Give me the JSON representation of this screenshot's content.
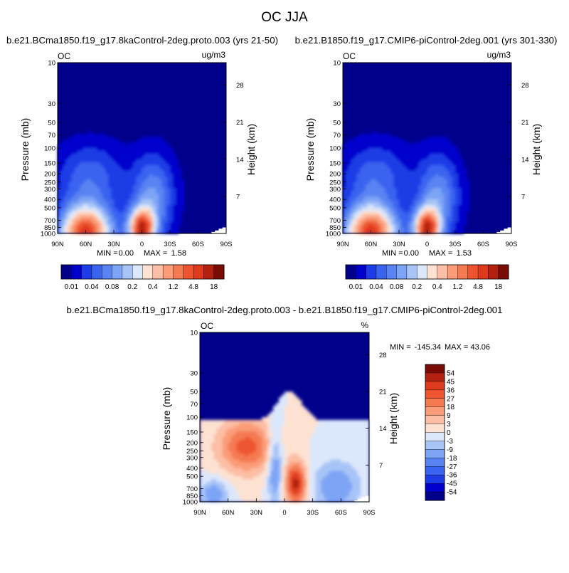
{
  "page_title": "OC JJA",
  "colors": {
    "ramp": [
      "#00008b",
      "#0000cd",
      "#1e3ce6",
      "#3a64f0",
      "#5a84f2",
      "#7ea4f5",
      "#a8c4f7",
      "#dbe7fb",
      "#fde2d2",
      "#fcbea4",
      "#fa9c78",
      "#f47a52",
      "#ee5430",
      "#de3a1e",
      "#b22010",
      "#7a0c06"
    ],
    "background": "#00008b"
  },
  "chart_data": [
    {
      "type": "heatmap",
      "title": "b.e21.BCma1850.f19_g17.8kaControl-2deg.proto.003 (yrs 21-50)",
      "corner_left": "OC",
      "corner_right": "ug/m3",
      "xlabel": "",
      "ylabel": "Pressure (mb)",
      "ylabel_right": "Height (km)",
      "x_ticks": [
        "90N",
        "60N",
        "30N",
        "0",
        "30S",
        "60S",
        "90S"
      ],
      "y_ticks": [
        "10",
        "30",
        "50",
        "70",
        "100",
        "150",
        "200",
        "250",
        "300",
        "400",
        "500",
        "700",
        "850",
        "1000"
      ],
      "right_ticks": [
        "28",
        "21",
        "14",
        "7"
      ],
      "stats": {
        "min_label": "MIN =",
        "min": "0.00",
        "max_label": "MAX =",
        "max": "1.58"
      },
      "colorbar": {
        "orientation": "horizontal",
        "labels": [
          "0.01",
          "0.04",
          "0.08",
          "0.2",
          "0.4",
          "1.2",
          "4.8",
          "18"
        ]
      },
      "field": "plume",
      "peaks": [
        {
          "lat": 60,
          "p": 1000,
          "level": 13
        },
        {
          "lat": 0,
          "p": 850,
          "level": 12
        }
      ]
    },
    {
      "type": "heatmap",
      "title": "b.e21.B1850.f19_g17.CMIP6-piControl-2deg.001 (yrs 301-330)",
      "corner_left": "OC",
      "corner_right": "ug/m3",
      "xlabel": "",
      "ylabel": "Pressure (mb)",
      "ylabel_right": "Height (km)",
      "x_ticks": [
        "90N",
        "60N",
        "30N",
        "0",
        "30S",
        "60S",
        "90S"
      ],
      "y_ticks": [
        "10",
        "30",
        "50",
        "70",
        "100",
        "150",
        "200",
        "250",
        "300",
        "400",
        "500",
        "700",
        "850",
        "1000"
      ],
      "right_ticks": [
        "28",
        "21",
        "14",
        "7"
      ],
      "stats": {
        "min_label": "MIN =",
        "min": "0.00",
        "max_label": "MAX =",
        "max": "1.53"
      },
      "colorbar": {
        "orientation": "horizontal",
        "labels": [
          "0.01",
          "0.04",
          "0.08",
          "0.2",
          "0.4",
          "1.2",
          "4.8",
          "18"
        ]
      },
      "field": "plume",
      "peaks": [
        {
          "lat": 60,
          "p": 1000,
          "level": 13
        },
        {
          "lat": 0,
          "p": 850,
          "level": 12
        }
      ]
    },
    {
      "type": "heatmap",
      "title": "b.e21.BCma1850.f19_g17.8kaControl-2deg.proto.003 - b.e21.B1850.f19_g17.CMIP6-piControl-2deg.001",
      "corner_left": "OC",
      "corner_right": "%",
      "xlabel": "",
      "ylabel": "Pressure (mb)",
      "ylabel_right": "Height (km)",
      "x_ticks": [
        "90N",
        "60N",
        "30N",
        "0",
        "30S",
        "60S",
        "90S"
      ],
      "y_ticks": [
        "10",
        "30",
        "50",
        "70",
        "100",
        "150",
        "200",
        "250",
        "300",
        "400",
        "500",
        "700",
        "850",
        "1000"
      ],
      "right_ticks": [
        "28",
        "21",
        "14",
        "7"
      ],
      "stats": {
        "min_label": "MIN =",
        "min": "-145.34",
        "max_label": "MAX =",
        "max": "43.06"
      },
      "colorbar": {
        "orientation": "vertical",
        "labels": [
          "54",
          "45",
          "36",
          "27",
          "18",
          "9",
          "3",
          "0",
          "-3",
          "-9",
          "-18",
          "-27",
          "-36",
          "-45",
          "-54"
        ]
      },
      "field": "difference",
      "peaks": [
        {
          "lat": 45,
          "p": 250,
          "level": 10
        },
        {
          "lat": -10,
          "p": 500,
          "level": 13
        }
      ]
    }
  ]
}
